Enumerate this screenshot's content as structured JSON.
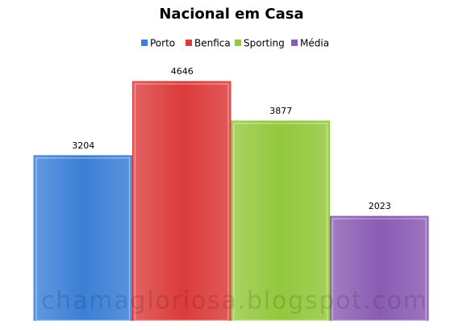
{
  "chart_data": {
    "type": "bar",
    "title": "Nacional em Casa",
    "series": [
      {
        "name": "Porto",
        "color": "#3b7fd6",
        "values": [
          3204
        ]
      },
      {
        "name": "Benfica",
        "color": "#dc3b3b",
        "values": [
          4646
        ]
      },
      {
        "name": "Sporting",
        "color": "#93c83c",
        "values": [
          3877
        ]
      },
      {
        "name": "Média",
        "color": "#8a5cb3",
        "values": [
          2023
        ]
      }
    ],
    "watermark": "chamagloriosa.blogspot.com"
  }
}
